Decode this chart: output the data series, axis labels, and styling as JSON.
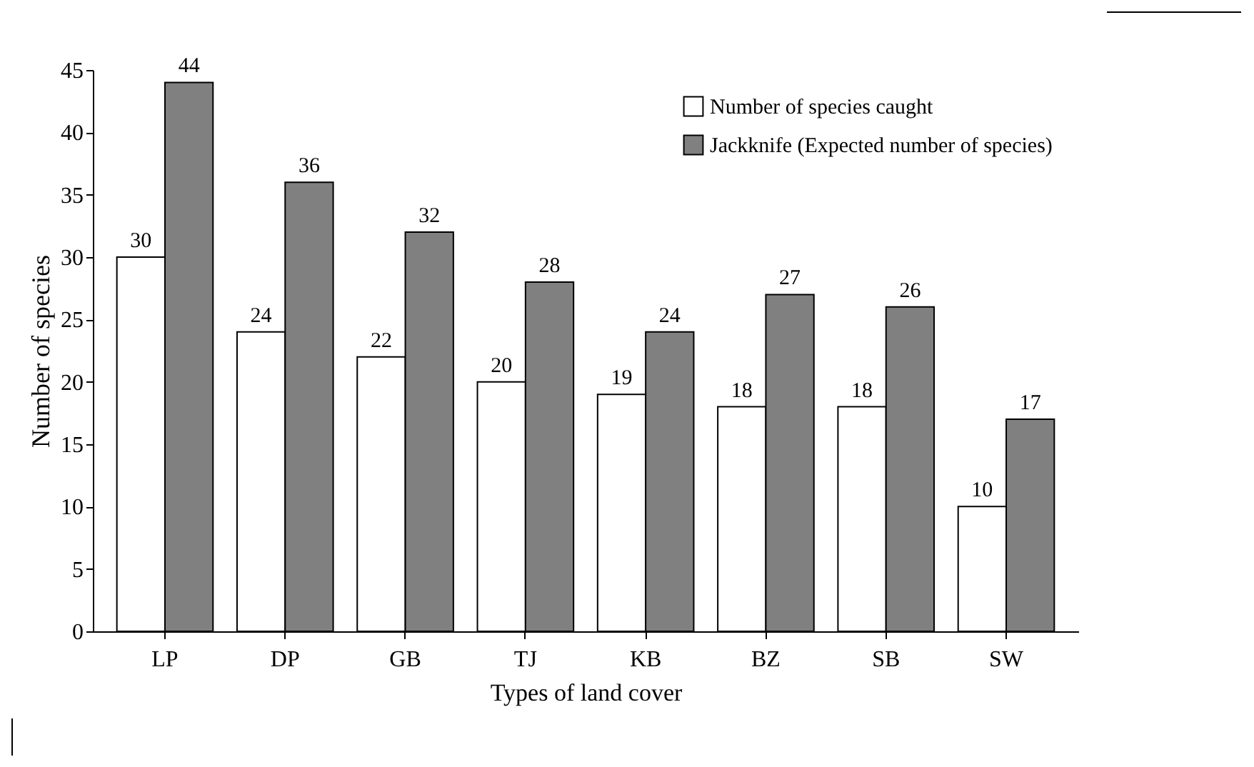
{
  "chart_data": {
    "type": "bar",
    "xlabel": "Types of land cover",
    "ylabel": "Number of species",
    "categories": [
      "LP",
      "DP",
      "GB",
      "TJ",
      "KB",
      "BZ",
      "SB",
      "SW"
    ],
    "series": [
      {
        "name": "Number of species caught",
        "color": "#ffffff",
        "values": [
          30,
          24,
          22,
          20,
          19,
          18,
          18,
          10
        ]
      },
      {
        "name": "Jackknife (Expected number of species)",
        "color": "#808080",
        "values": [
          44,
          36,
          32,
          28,
          24,
          27,
          26,
          17
        ]
      }
    ],
    "ylim": [
      0,
      45
    ],
    "yticks": [
      0,
      5,
      10,
      15,
      20,
      25,
      30,
      35,
      40,
      45
    ],
    "grid": false,
    "legend": "top right",
    "data_labels": true
  }
}
